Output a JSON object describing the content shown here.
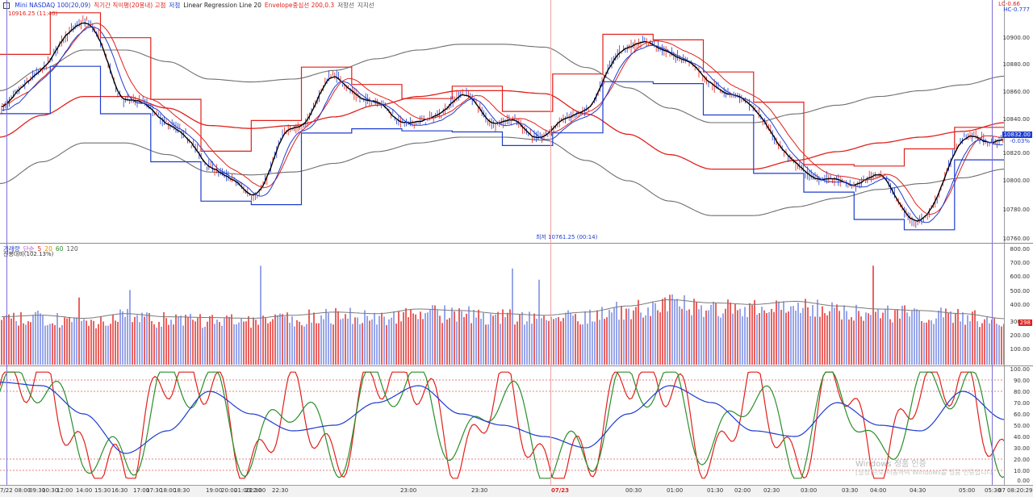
{
  "price_panel": {
    "legend": [
      {
        "text": "Mini NASDAQ 100(20,09)",
        "color": "#1e3ccf"
      },
      {
        "text": "직기간 직이평(20봉내) 고점",
        "color": "#e0201b"
      },
      {
        "text": "저점",
        "color": "#1e3ccf"
      },
      {
        "text": "Linear Regression Line 20",
        "color": "#222222"
      },
      {
        "text": "Envelope중심선 200,0.3",
        "color": "#e0201b"
      },
      {
        "text": "저항선",
        "color": "#555555"
      },
      {
        "text": "지지선",
        "color": "#555555"
      }
    ],
    "high_label": "10916.25 (11:40)",
    "low_label": "최저 10761.25 (00:14)",
    "lc_label": "LC-0.66",
    "hc_label": "HC-0.777",
    "current_price": "10832.00",
    "current_change": "-0.03%",
    "y_ticks": [
      "10900.00",
      "10880.00",
      "10860.00",
      "10840.00",
      "10820.00",
      "10800.00",
      "10780.00",
      "10760.00"
    ]
  },
  "volume_panel": {
    "legend": [
      {
        "text": "거래량",
        "color": "#1e3ccf"
      },
      {
        "text": "단순",
        "color": "#b04fc0"
      },
      {
        "text": "5",
        "color": "#e0201b"
      },
      {
        "text": "20",
        "color": "#e08a00"
      },
      {
        "text": "60",
        "color": "#2a8f2a"
      },
      {
        "text": "120",
        "color": "#555555"
      }
    ],
    "ratio_label": "전봉대비(102.13%)",
    "current_volume": "298",
    "y_ticks": [
      "800.00",
      "700.00",
      "600.00",
      "500.00",
      "400.00",
      "300.00",
      "200.00",
      "100.00"
    ]
  },
  "stoch_panel": {
    "y_ticks": [
      "100.00",
      "90.00",
      "80.00",
      "70.00",
      "60.00",
      "50.00",
      "40.00",
      "30.00",
      "20.00",
      "10.00",
      "0.00"
    ]
  },
  "x_axis": {
    "ticks": [
      "7/22",
      "08:00",
      "09:30",
      "10:30",
      "12:00",
      "14:00",
      "15:30",
      "16:30",
      "17:00",
      "17:30",
      "18:00",
      "18:30",
      "19:00",
      "20:00",
      "21:00",
      "21:30",
      "22:00",
      "22:30",
      "23:00",
      "23:30",
      "07/23",
      "00:30",
      "01:00",
      "01:30",
      "02:00",
      "02:30",
      "03:00",
      "03:30",
      "04:00",
      "04:30",
      "05:00",
      "05:30",
      "07",
      "08:20:29"
    ]
  },
  "watermark": {
    "line1": "Windows 정품 인증",
    "line2": "[설정]으로 이동하여 Windows를 정품 인증합니다."
  },
  "colors": {
    "up": "#e0201b",
    "down": "#1e3ccf",
    "regression": "#000000",
    "envelope_mid": "#e0201b",
    "envelope_band": "#6e6e6e",
    "period_high": "#e0201b",
    "period_low": "#1e3ccf",
    "stoch_k": "#e0201b",
    "stoch_d": "#2a8f2a",
    "stoch_slow": "#1e3ccf"
  },
  "chart_data": [
    {
      "type": "line",
      "title": "Mini NASDAQ 100(20,09)",
      "ylim": [
        10760,
        10920
      ],
      "x": [
        0,
        1,
        2,
        3,
        4,
        5,
        6,
        7,
        8,
        9,
        10,
        11,
        12,
        13,
        14,
        15,
        16,
        17,
        18,
        19,
        20,
        21,
        22,
        23,
        24
      ],
      "series": [
        {
          "name": "Mini NASDAQ 100",
          "values": [
            10848,
            10878,
            10912,
            10858,
            10842,
            10812,
            10790,
            10835,
            10870,
            10852,
            10838,
            10858,
            10840,
            10832,
            10850,
            10895,
            10890,
            10868,
            10850,
            10810,
            10798,
            10802,
            10770,
            10828,
            10830
          ]
        },
        {
          "name": "Envelope중심선 200,0.3",
          "values": [
            10830,
            10845,
            10858,
            10858,
            10850,
            10838,
            10836,
            10838,
            10844,
            10852,
            10858,
            10862,
            10862,
            10860,
            10846,
            10832,
            10818,
            10808,
            10808,
            10814,
            10820,
            10826,
            10830,
            10834,
            10840
          ]
        }
      ]
    },
    {
      "type": "bar",
      "title": "거래량",
      "ylim": [
        0,
        800
      ],
      "x": [
        0,
        1,
        2,
        3,
        4,
        5,
        6,
        7,
        8,
        9,
        10,
        11,
        12,
        13,
        14,
        15,
        16,
        17,
        18,
        19,
        20,
        21,
        22,
        23,
        24
      ],
      "series": [
        {
          "name": "거래량",
          "values": [
            310,
            320,
            300,
            330,
            310,
            305,
            300,
            320,
            340,
            330,
            360,
            350,
            330,
            320,
            340,
            380,
            420,
            400,
            390,
            410,
            380,
            360,
            350,
            330,
            298
          ]
        }
      ]
    },
    {
      "type": "line",
      "title": "",
      "ylim": [
        0,
        100
      ],
      "x": [
        0,
        1,
        2,
        3,
        4,
        5,
        6,
        7,
        8,
        9,
        10,
        11,
        12,
        13,
        14,
        15,
        16,
        17,
        18,
        19,
        20,
        21,
        22,
        23,
        24
      ],
      "series": [
        {
          "name": "",
          "values": [
            85,
            95,
            20,
            10,
            95,
            90,
            10,
            80,
            15,
            95,
            90,
            15,
            90,
            10,
            20,
            95,
            88,
            15,
            90,
            12,
            95,
            10,
            85,
            90,
            15
          ]
        },
        {
          "name": "",
          "values": [
            80,
            92,
            30,
            15,
            90,
            85,
            20,
            75,
            22,
            90,
            85,
            25,
            85,
            18,
            25,
            90,
            85,
            25,
            85,
            20,
            90,
            18,
            80,
            88,
            25
          ]
        },
        {
          "name": "",
          "values": [
            88,
            85,
            60,
            25,
            45,
            80,
            60,
            45,
            50,
            70,
            85,
            60,
            50,
            40,
            30,
            60,
            85,
            70,
            45,
            40,
            70,
            50,
            45,
            80,
            55
          ]
        }
      ]
    }
  ]
}
